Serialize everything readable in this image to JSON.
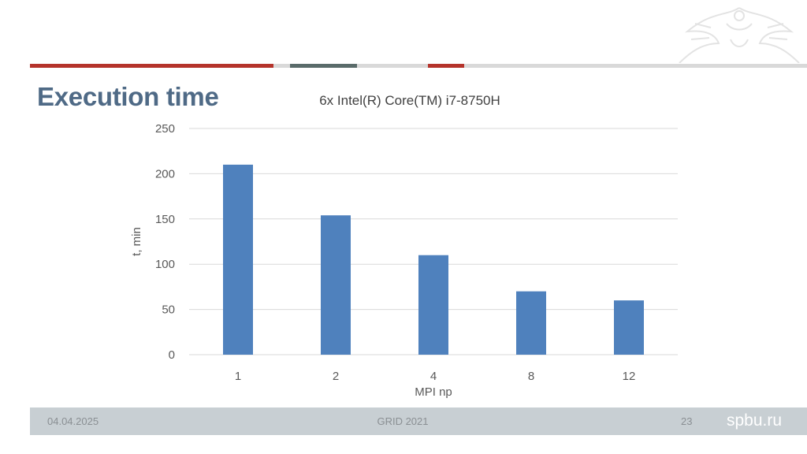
{
  "slide": {
    "title": "Execution time",
    "footer": {
      "date": "04.04.2025",
      "center": "GRID 2021",
      "page": "23",
      "brand": "spbu.ru"
    },
    "colors": {
      "accent_red": "#b5332b",
      "title_blue": "#4f6a86",
      "bar_blue": "#4f81bd",
      "footer_bg": "#c8cfd3"
    },
    "icons": [
      "emblem-watermark"
    ]
  },
  "chart_data": {
    "type": "bar",
    "title": "6x Intel(R) Core(TM) i7-8750H",
    "xlabel": "MPI np",
    "ylabel": "t, min",
    "categories": [
      "1",
      "2",
      "4",
      "8",
      "12"
    ],
    "values": [
      210,
      154,
      110,
      70,
      60
    ],
    "ylim": [
      0,
      250
    ],
    "yticks": [
      0,
      50,
      100,
      150,
      200,
      250
    ],
    "grid": true,
    "legend": "none"
  }
}
